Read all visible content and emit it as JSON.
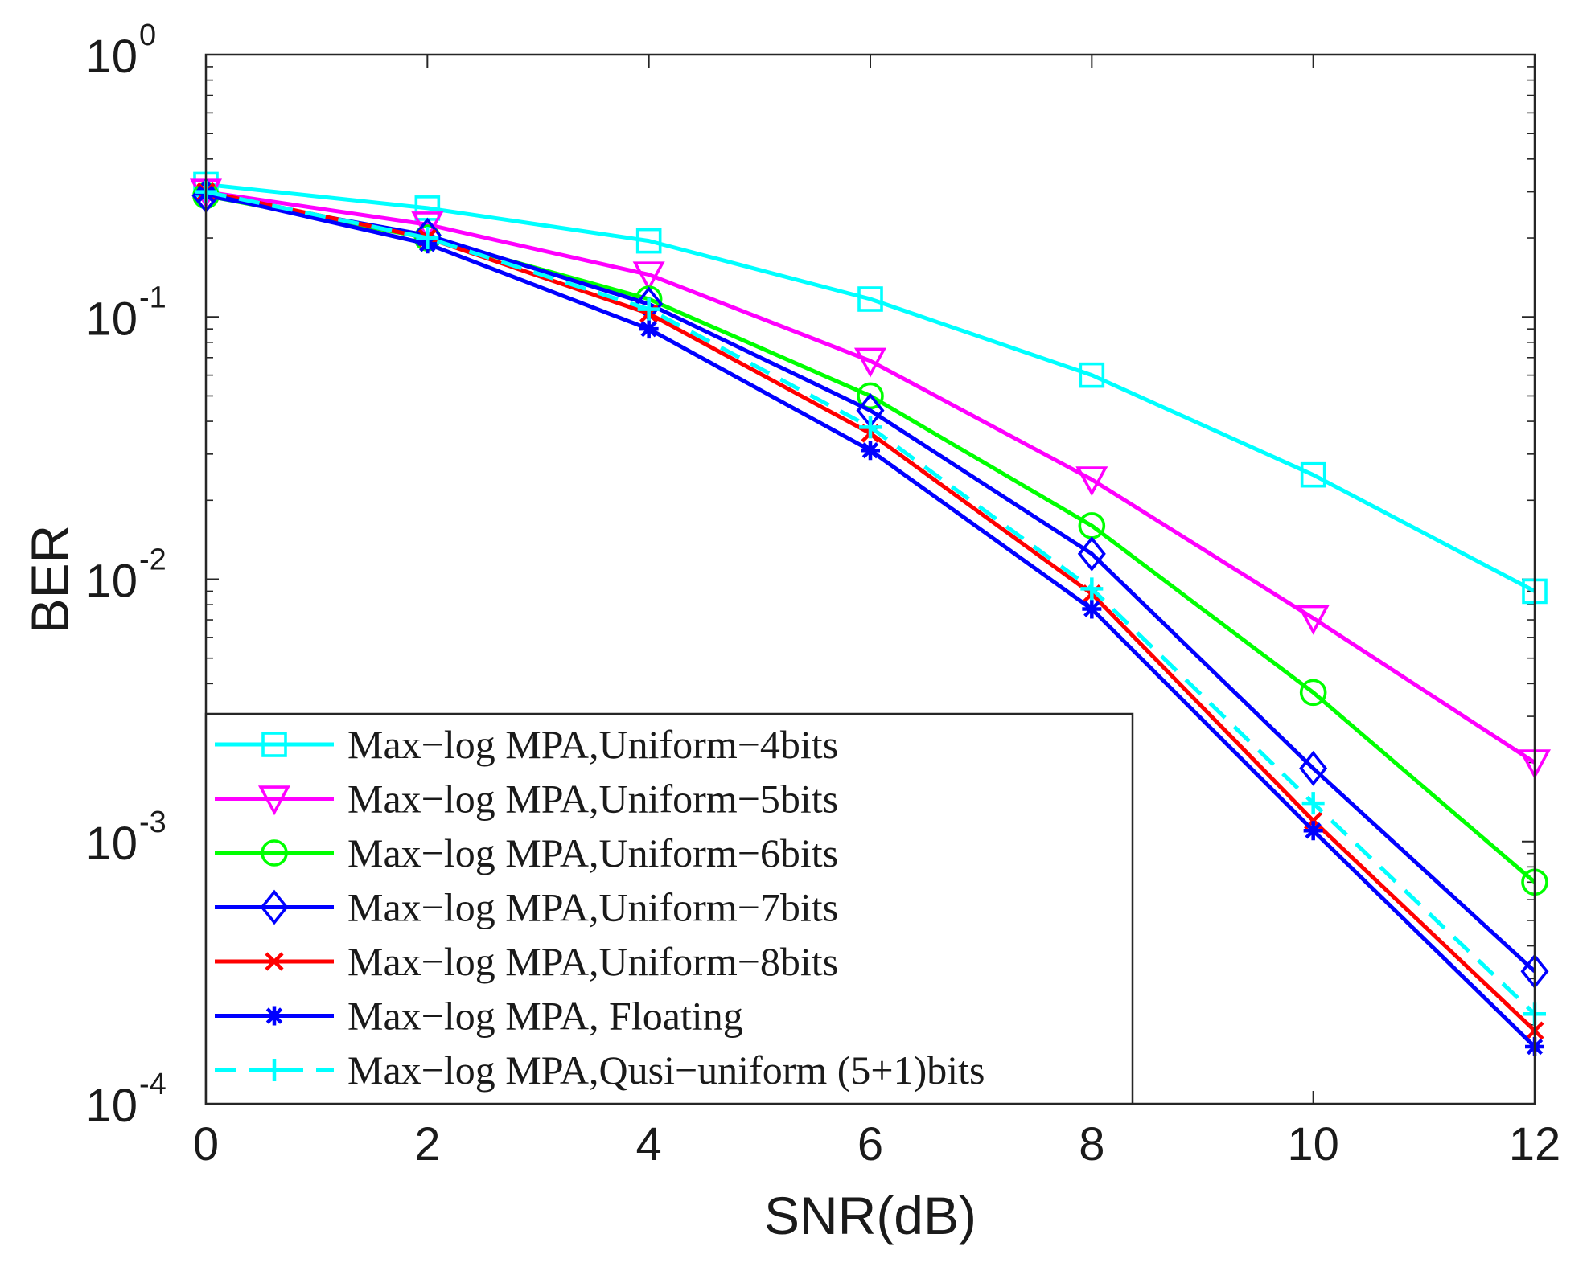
{
  "chart_data": {
    "type": "line",
    "title": "",
    "xlabel": "SNR(dB)",
    "ylabel": "BER",
    "yscale": "log",
    "xlim": [
      0,
      12
    ],
    "ylim": [
      0.0001,
      1
    ],
    "grid": false,
    "legend_position": "bottom-left",
    "x": [
      0,
      2,
      4,
      6,
      8,
      10,
      12
    ],
    "x_ticks": [
      "0",
      "2",
      "4",
      "6",
      "8",
      "10",
      "12"
    ],
    "y_ticks": [
      {
        "value": 1,
        "base": "10",
        "exp": "0"
      },
      {
        "value": 0.1,
        "base": "10",
        "exp": "-1"
      },
      {
        "value": 0.01,
        "base": "10",
        "exp": "-2"
      },
      {
        "value": 0.001,
        "base": "10",
        "exp": "-3"
      },
      {
        "value": 0.0001,
        "base": "10",
        "exp": "-4"
      }
    ],
    "series": [
      {
        "name": "Max−log MPA,Uniform−4bits",
        "color": "#00ffff",
        "marker": "square",
        "dash": "solid",
        "values": [
          0.32,
          0.26,
          0.195,
          0.117,
          0.06,
          0.025,
          0.009
        ]
      },
      {
        "name": "Max−log MPA,Uniform−5bits",
        "color": "#ff00ff",
        "marker": "triangle-down",
        "dash": "solid",
        "values": [
          0.3,
          0.225,
          0.145,
          0.068,
          0.024,
          0.0071,
          0.002
        ]
      },
      {
        "name": "Max−log MPA,Uniform−6bits",
        "color": "#00ff00",
        "marker": "circle",
        "dash": "solid",
        "values": [
          0.29,
          0.2,
          0.117,
          0.05,
          0.016,
          0.0037,
          0.0007
        ]
      },
      {
        "name": "Max−log MPA,Uniform−7bits",
        "color": "#0000ff",
        "marker": "diamond",
        "dash": "solid",
        "values": [
          0.29,
          0.205,
          0.112,
          0.044,
          0.0125,
          0.0019,
          0.00032
        ]
      },
      {
        "name": "Max−log MPA,Uniform−8bits",
        "color": "#ff0000",
        "marker": "x",
        "dash": "solid",
        "values": [
          0.3,
          0.2,
          0.103,
          0.036,
          0.0088,
          0.0012,
          0.00019
        ]
      },
      {
        "name": "Max−log MPA, Floating",
        "color": "#0000ff",
        "marker": "asterisk",
        "dash": "solid",
        "values": [
          0.295,
          0.19,
          0.09,
          0.031,
          0.0077,
          0.0011,
          0.000165
        ]
      },
      {
        "name": "Max−log MPA,Qusi−uniform (5+1)bits",
        "color": "#00ffff",
        "marker": "plus",
        "dash": "dashed",
        "values": [
          0.3,
          0.2,
          0.107,
          0.038,
          0.0092,
          0.0014,
          0.00022
        ]
      }
    ]
  }
}
